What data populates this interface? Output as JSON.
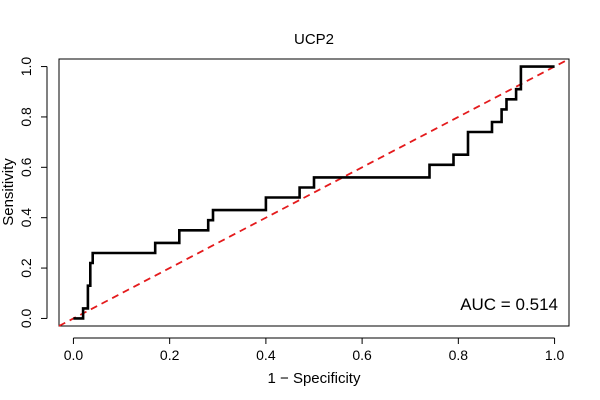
{
  "chart_data": {
    "type": "line",
    "title": "UCP2",
    "xlabel": "1 − Specificity",
    "ylabel": "Sensitivity",
    "xlim": [
      -0.03,
      1.03
    ],
    "ylim": [
      -0.03,
      1.03
    ],
    "x_ticks": [
      0.0,
      0.2,
      0.4,
      0.6,
      0.8,
      1.0
    ],
    "x_tick_labels": [
      "0.0",
      "0.2",
      "0.4",
      "0.6",
      "0.8",
      "1.0"
    ],
    "y_ticks": [
      0.0,
      0.2,
      0.4,
      0.6,
      0.8,
      1.0
    ],
    "y_tick_labels": [
      "0.0",
      "0.2",
      "0.4",
      "0.6",
      "0.8",
      "1.0"
    ],
    "grid": false,
    "annotation": "AUC = 0.514",
    "series": [
      {
        "color": "#000000",
        "style": "solid",
        "x": [
          0.0,
          0.02,
          0.02,
          0.03,
          0.03,
          0.035,
          0.035,
          0.04,
          0.04,
          0.17,
          0.17,
          0.22,
          0.22,
          0.28,
          0.28,
          0.29,
          0.29,
          0.4,
          0.4,
          0.47,
          0.47,
          0.5,
          0.5,
          0.74,
          0.74,
          0.79,
          0.79,
          0.82,
          0.82,
          0.87,
          0.87,
          0.89,
          0.89,
          0.9,
          0.9,
          0.92,
          0.92,
          0.93,
          0.93,
          1.0
        ],
        "y": [
          0.0,
          0.0,
          0.04,
          0.04,
          0.13,
          0.13,
          0.22,
          0.22,
          0.26,
          0.26,
          0.3,
          0.3,
          0.35,
          0.35,
          0.39,
          0.39,
          0.43,
          0.43,
          0.48,
          0.48,
          0.52,
          0.52,
          0.56,
          0.56,
          0.61,
          0.61,
          0.65,
          0.65,
          0.74,
          0.74,
          0.78,
          0.78,
          0.83,
          0.83,
          0.87,
          0.87,
          0.91,
          0.91,
          1.0,
          1.0
        ]
      },
      {
        "color": "#e41a1c",
        "style": "dashed",
        "x": [
          -0.03,
          1.03
        ],
        "y": [
          -0.03,
          1.03
        ]
      }
    ]
  }
}
